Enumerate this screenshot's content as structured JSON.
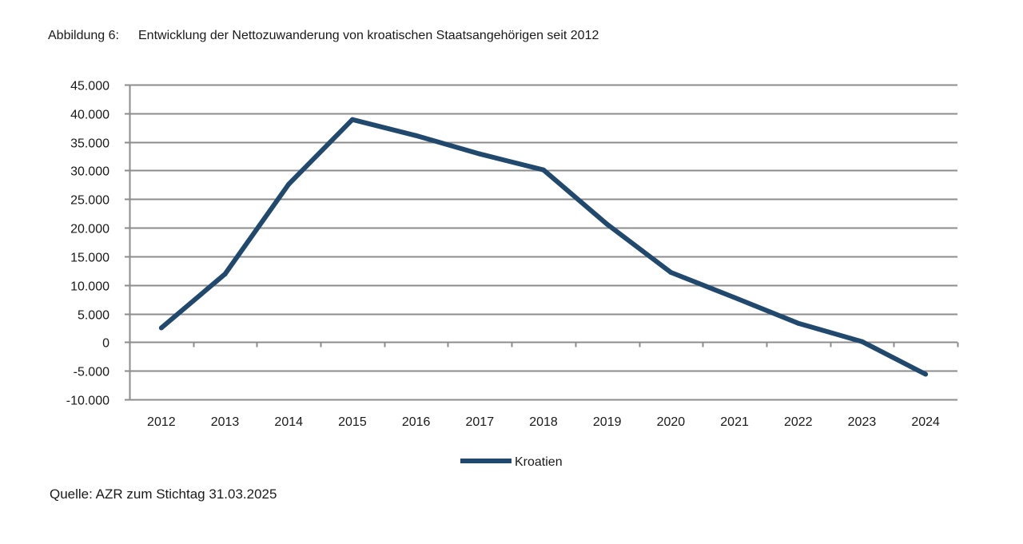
{
  "figure": {
    "label": "Abbildung 6:",
    "title": "Entwicklung der Nettozuwanderung von kroatischen Staatsangehörigen seit 2012"
  },
  "source": "Quelle: AZR zum Stichtag 31.03.2025",
  "chart_data": {
    "type": "line",
    "title": "Entwicklung der Nettozuwanderung von kroatischen Staatsangehörigen seit 2012",
    "xlabel": "",
    "ylabel": "",
    "categories": [
      "2012",
      "2013",
      "2014",
      "2015",
      "2016",
      "2017",
      "2018",
      "2019",
      "2020",
      "2021",
      "2022",
      "2023",
      "2024"
    ],
    "series": [
      {
        "name": "Kroatien",
        "color": "#21496e",
        "values": [
          2500,
          11900,
          27600,
          38900,
          36100,
          32900,
          30100,
          20600,
          12200,
          7800,
          3300,
          100,
          -5600
        ]
      }
    ],
    "ylim": [
      -10000,
      45000
    ],
    "yticks": [
      45000,
      40000,
      35000,
      30000,
      25000,
      20000,
      15000,
      10000,
      5000,
      0,
      -5000,
      -10000
    ],
    "ytick_labels": [
      "45.000",
      "40.000",
      "35.000",
      "30.000",
      "25.000",
      "20.000",
      "15.000",
      "10.000",
      "5.000",
      "0",
      "-5.000",
      "-10.000"
    ],
    "grid": true,
    "gridline_color": "#8c8c8c",
    "legend_position": "bottom-center"
  }
}
